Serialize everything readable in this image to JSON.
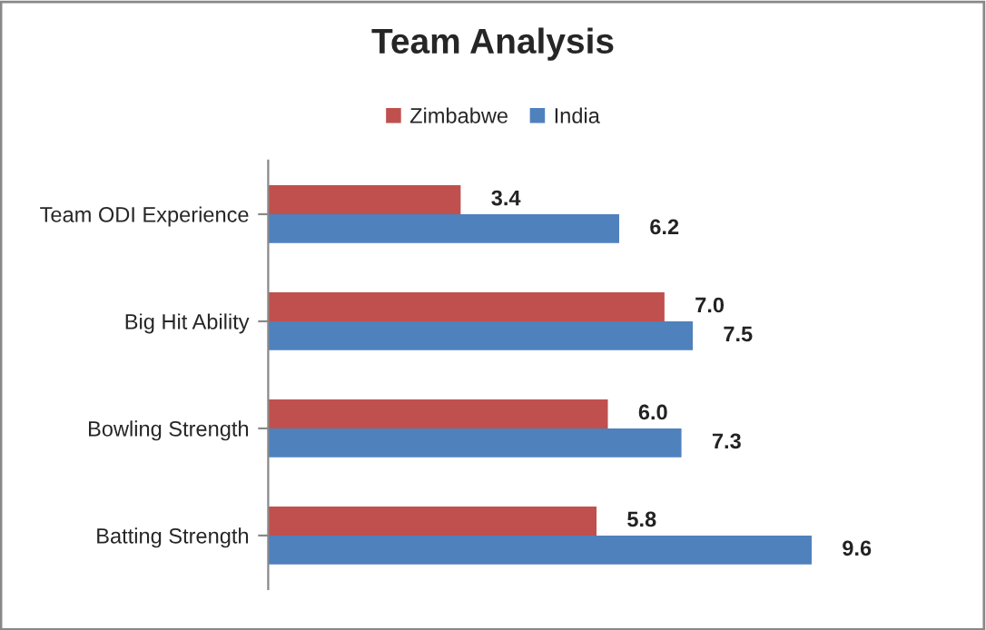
{
  "chart_data": {
    "type": "bar",
    "title": "Team Analysis",
    "orientation": "horizontal",
    "categories": [
      "Team ODI Experience",
      "Big Hit Ability",
      "Bowling Strength",
      "Batting Strength"
    ],
    "series": [
      {
        "name": "Zimbabwe",
        "color": "#c0504d",
        "values": [
          3.4,
          7.0,
          6.0,
          5.8
        ],
        "value_labels": [
          "3.4",
          "7.0",
          "6.0",
          "5.8"
        ]
      },
      {
        "name": "India",
        "color": "#4f81bd",
        "values": [
          6.2,
          7.5,
          7.3,
          9.6
        ],
        "value_labels": [
          "6.2",
          "7.5",
          "7.3",
          "9.6"
        ]
      }
    ],
    "legend": "top",
    "grid": false,
    "tick_labels": "y"
  }
}
